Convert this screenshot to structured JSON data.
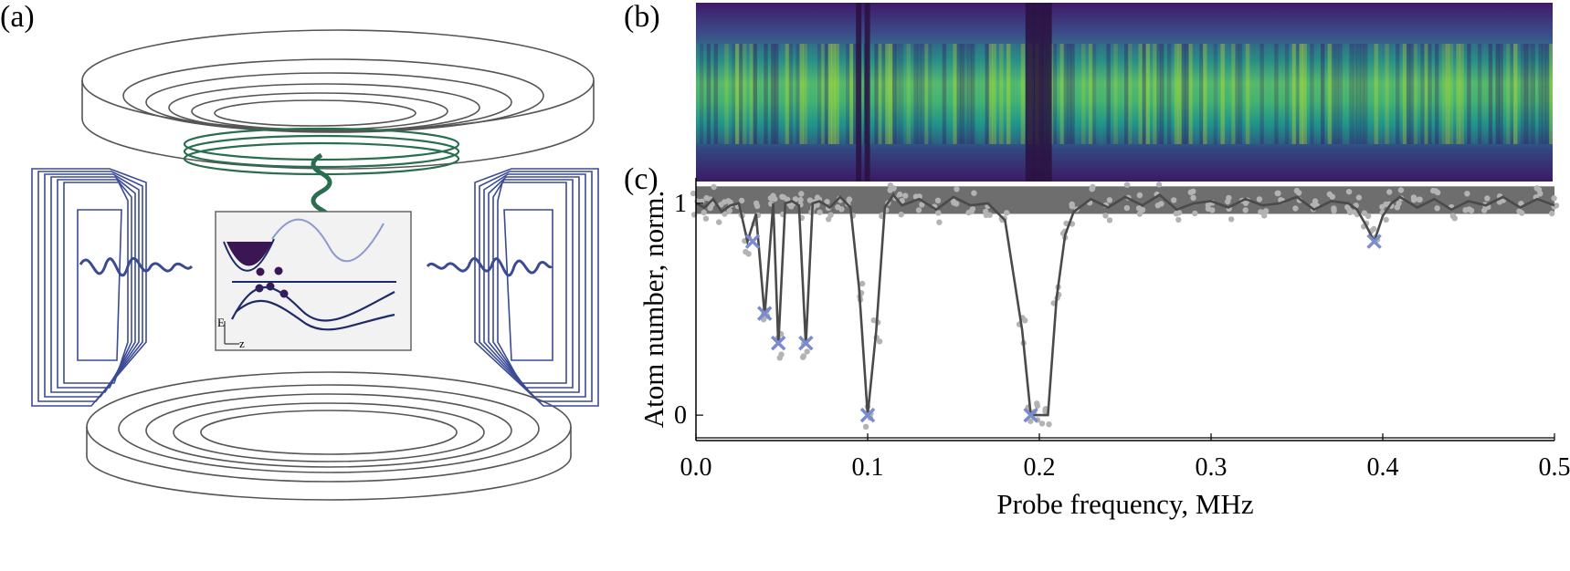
{
  "labels": {
    "a": "(a)",
    "b": "(b)",
    "c": "(c)"
  },
  "inset": {
    "e_label": "E",
    "z_label": "z"
  },
  "colors": {
    "coil_blue": "#3a4a94",
    "coil_green": "#2a6e50",
    "coil_grey": "#555555",
    "cloud_purple": "#3b1654",
    "curve_dark": "#1f2a6a",
    "curve_light": "#8d9ad0",
    "band_grey": "#6e6e6e",
    "mean_line": "#4a4a4a",
    "points": "#b3b3b3",
    "marker": "#7b8ccd"
  },
  "heatmap": {
    "colormap": "viridis",
    "dark_columns": [
      0.095,
      0.1,
      0.195,
      0.2,
      0.205
    ]
  },
  "chart_data": {
    "type": "line",
    "xlabel": "Probe frequency, MHz",
    "ylabel": "Atom number, norm.",
    "xlim": [
      0,
      0.5
    ],
    "ylim": [
      -0.12,
      1.12
    ],
    "xticks": [
      0.0,
      0.1,
      0.2,
      0.3,
      0.4,
      0.5
    ],
    "xtick_labels": [
      "0.0",
      "0.1",
      "0.2",
      "0.3",
      "0.4",
      "0.5"
    ],
    "yticks": [
      0,
      1
    ],
    "ytick_labels": [
      "0",
      "1"
    ],
    "band": {
      "ymin": 0.95,
      "ymax": 1.08
    },
    "series": [
      {
        "x": [
          0,
          0.005,
          0.01,
          0.015,
          0.02,
          0.025,
          0.03,
          0.035,
          0.04,
          0.045,
          0.048,
          0.052,
          0.056,
          0.06,
          0.064,
          0.068,
          0.072,
          0.078,
          0.084,
          0.09,
          0.095,
          0.1,
          0.105,
          0.11,
          0.115,
          0.12,
          0.13,
          0.14,
          0.15,
          0.16,
          0.17,
          0.18,
          0.19,
          0.195,
          0.2,
          0.205,
          0.21,
          0.215,
          0.22,
          0.23,
          0.24,
          0.25,
          0.26,
          0.27,
          0.28,
          0.29,
          0.3,
          0.31,
          0.32,
          0.33,
          0.34,
          0.35,
          0.36,
          0.37,
          0.38,
          0.385,
          0.39,
          0.395,
          0.4,
          0.405,
          0.41,
          0.42,
          0.43,
          0.44,
          0.45,
          0.46,
          0.47,
          0.48,
          0.49,
          0.5
        ],
        "values": [
          1.0,
          0.98,
          1.02,
          0.96,
          0.99,
          1.0,
          0.82,
          0.95,
          0.47,
          1.0,
          0.33,
          1.0,
          1.01,
          0.99,
          0.33,
          1.0,
          1.01,
          0.98,
          1.03,
          0.98,
          0.6,
          0.0,
          0.4,
          0.98,
          1.04,
          0.99,
          1.02,
          0.97,
          1.03,
          0.99,
          1.0,
          0.92,
          0.4,
          0.0,
          0.0,
          0.0,
          0.55,
          0.85,
          0.96,
          1.02,
          0.98,
          1.03,
          0.99,
          1.04,
          0.97,
          1.0,
          1.01,
          0.98,
          1.02,
          0.99,
          1.0,
          1.03,
          0.97,
          1.01,
          1.0,
          0.97,
          0.9,
          0.82,
          0.94,
          1.0,
          1.03,
          0.98,
          1.02,
          0.97,
          1.01,
          0.99,
          1.03,
          0.98,
          1.02,
          0.99
        ]
      }
    ],
    "markers": [
      {
        "x": 0.033,
        "y": 0.82
      },
      {
        "x": 0.04,
        "y": 0.48
      },
      {
        "x": 0.048,
        "y": 0.34
      },
      {
        "x": 0.064,
        "y": 0.34
      },
      {
        "x": 0.1,
        "y": 0.0
      },
      {
        "x": 0.195,
        "y": 0.0
      },
      {
        "x": 0.395,
        "y": 0.82
      }
    ]
  }
}
